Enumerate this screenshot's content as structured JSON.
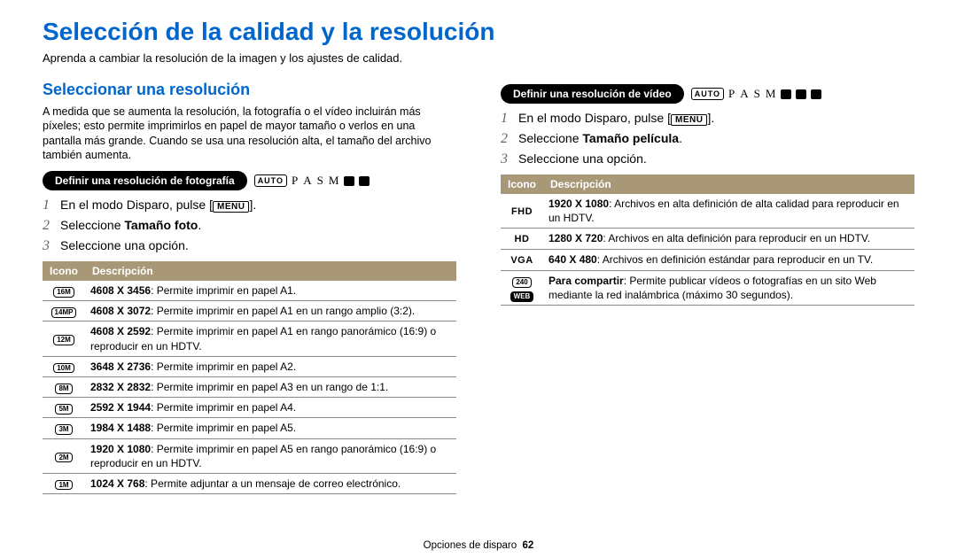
{
  "title": "Selección de la calidad y la resolución",
  "subtitle": "Aprenda a cambiar la resolución de la imagen y los ajustes de calidad.",
  "section1_title": "Seleccionar una resolución",
  "section1_para": "A medida que se aumenta la resolución, la fotografía o el vídeo incluirán más píxeles; esto permite imprimirlos en papel de mayor tamaño o verlos en una pantalla más grande. Cuando se usa una resolución alta, el tamaño del archivo también aumenta.",
  "photo_header": "Definir una resolución de fotografía",
  "video_header": "Definir una resolución de vídeo",
  "auto_label": "AUTO",
  "modes_letters": [
    "P",
    "A",
    "S",
    "M"
  ],
  "step_text": {
    "s1_pre": "En el modo Disparo, pulse [",
    "s1_post": "].",
    "menu": "MENU",
    "s2_pre": "Seleccione ",
    "photo_bold": "Tamaño foto",
    "video_bold": "Tamaño película",
    "s3": "Seleccione una opción."
  },
  "table_headers": {
    "icon": "Icono",
    "desc": "Descripción"
  },
  "photo_rows": [
    {
      "icon": "16M",
      "bold": "4608 X 3456",
      "desc": ": Permite imprimir en papel A1."
    },
    {
      "icon": "14MP",
      "bold": "4608 X 3072",
      "desc": ": Permite imprimir en papel A1 en un rango amplio (3:2)."
    },
    {
      "icon": "12M",
      "bold": "4608 X 2592",
      "desc": ": Permite imprimir en papel A1 en rango panorámico (16:9) o reproducir en un HDTV."
    },
    {
      "icon": "10M",
      "bold": "3648 X 2736",
      "desc": ": Permite imprimir en papel A2."
    },
    {
      "icon": "8M",
      "bold": "2832 X 2832",
      "desc": ": Permite imprimir en papel A3 en un rango de 1:1."
    },
    {
      "icon": "5M",
      "bold": "2592 X 1944",
      "desc": ": Permite imprimir en papel A4."
    },
    {
      "icon": "3M",
      "bold": "1984 X 1488",
      "desc": ": Permite imprimir en papel A5."
    },
    {
      "icon": "2M",
      "bold": "1920 X 1080",
      "desc": ": Permite imprimir en papel A5 en rango panorámico (16:9) o reproducir en un HDTV."
    },
    {
      "icon": "1M",
      "bold": "1024 X 768",
      "desc": ": Permite adjuntar a un mensaje de correo electrónico."
    }
  ],
  "video_rows": [
    {
      "icon": "FHD",
      "bold": "1920 X 1080",
      "desc": ": Archivos en alta definición de alta calidad para reproducir en un HDTV."
    },
    {
      "icon": "HD",
      "bold": "1280 X 720",
      "desc": ": Archivos en alta definición para reproducir en un HDTV."
    },
    {
      "icon": "VGA",
      "bold": "640 X 480",
      "desc": ": Archivos en definición estándar para reproducir en un TV."
    },
    {
      "icon": "240 WEB",
      "bold": "Para compartir",
      "desc": ": Permite publicar vídeos o fotografías en un sito Web mediante la red inalámbrica (máximo 30 segundos)."
    }
  ],
  "footer_label": "Opciones de disparo",
  "footer_page": "62",
  "colors": {
    "heading": "#0066cc",
    "th_bg": "#a89878",
    "step_num": "#666"
  }
}
